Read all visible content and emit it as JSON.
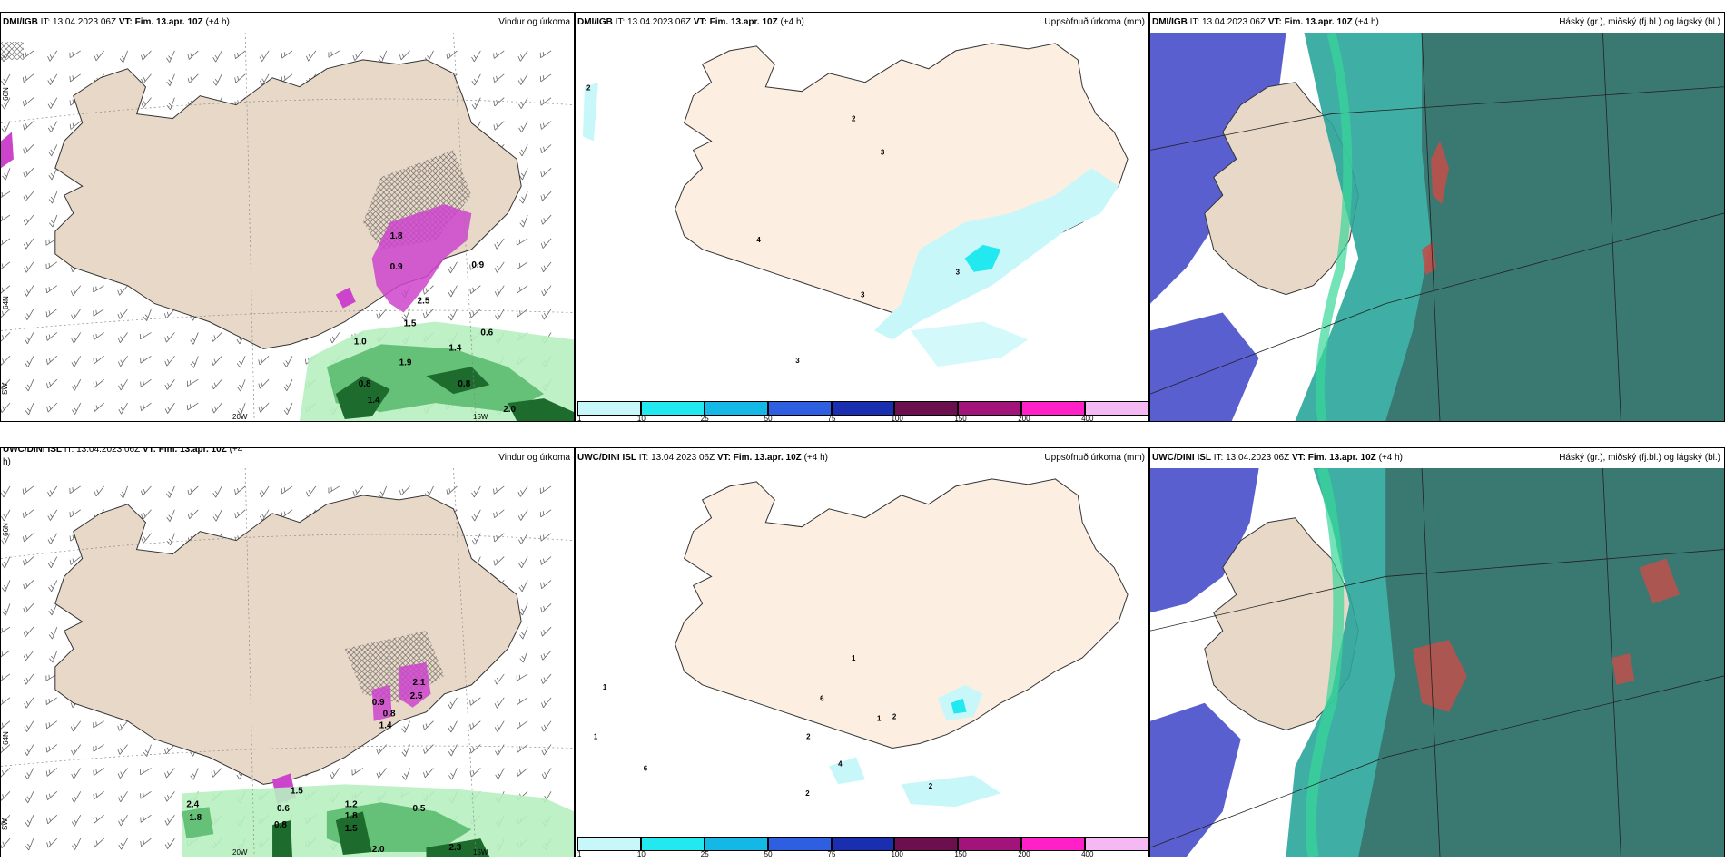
{
  "panels": [
    {
      "model": "DMI/IGB",
      "it": "IT: 13.04.2023 06Z",
      "vt": "VT: Fim. 13.apr. 10Z",
      "lead": "(+4 h)",
      "product": "Vindur og úrkoma"
    },
    {
      "model": "DMI/IGB",
      "it": "IT: 13.04.2023 06Z",
      "vt": "VT: Fim. 13.apr. 10Z",
      "lead": "(+4 h)",
      "product": "Uppsöfnuð úrkoma (mm)"
    },
    {
      "model": "DMI/IGB",
      "it": "IT: 13.04.2023 06Z",
      "vt": "VT: Fim. 13.apr. 10Z",
      "lead": "(+4 h)",
      "product": "Háský (gr.), miðský (fj.bl.) og lágský (bl.)"
    },
    {
      "model": "UWC/DINI ISL",
      "it": "IT: 13.04.2023 06Z",
      "vt": "VT: Fim. 13.apr. 10Z",
      "lead": "(+4",
      "lead2": "h)",
      "product": "Vindur og úrkoma"
    },
    {
      "model": "UWC/DINI ISL",
      "it": "IT: 13.04.2023 06Z",
      "vt": "VT: Fim. 13.apr. 10Z",
      "lead": "(+4 h)",
      "product": "Uppsöfnuð úrkoma (mm)"
    },
    {
      "model": "UWC/DINI ISL",
      "it": "IT: 13.04.2023 06Z",
      "vt": "VT: Fim. 13.apr. 10Z",
      "lead": "(+4 h)",
      "product": "Háský (gr.), miðský (fj.bl.) og lágský (bl.)"
    }
  ],
  "axis_labels": {
    "lon_west": "20W",
    "lon_east": "15W",
    "lat_66": "66N",
    "lat_64": "64N",
    "lat_62": "63N",
    "sw": "SW"
  },
  "colorbar": {
    "labels": [
      "1",
      "10",
      "25",
      "50",
      "75",
      "100",
      "150",
      "200",
      "400"
    ],
    "colors": [
      "#c8f7fa",
      "#22e8f0",
      "#14b8e6",
      "#2e5fe0",
      "#1a2fb0",
      "#6b0f4f",
      "#a3147a",
      "#ff20c8",
      "#f4b8f2"
    ]
  },
  "precip_labels_top": [
    "0.6",
    "1.0",
    "1.4",
    "0.8",
    "0.8",
    "2.0",
    "1.4",
    "1.9",
    "1.8",
    "0.9",
    "0.9",
    "2.5",
    "1.5"
  ],
  "precip_labels_bottom": [
    "2.4",
    "1.8",
    "0.6",
    "0.8",
    "1.2",
    "1.8",
    "1.5",
    "0.5",
    "2.0",
    "2.3",
    "0.9",
    "0.8",
    "1.4",
    "2.1",
    "2.5",
    "1.5"
  ],
  "accum_labels_top": [
    "2",
    "2",
    "3",
    "4",
    "3",
    "3",
    "3"
  ],
  "accum_labels_bottom": [
    "1",
    "1",
    "6",
    "1",
    "2",
    "1",
    "2",
    "4",
    "2",
    "6",
    "2"
  ],
  "colors": {
    "land": "#e8d8c8",
    "land_accum": "#fcefe1",
    "sea": "#ffffff",
    "magenta": "#cc44cc",
    "green_dark": "#1e6b2e",
    "green_mid": "#55b868",
    "green_light": "#b8f0c0",
    "cloud_high": "#3a6e6a",
    "cloud_mid": "#2aa59a",
    "cloud_low": "#5a5fd0"
  }
}
